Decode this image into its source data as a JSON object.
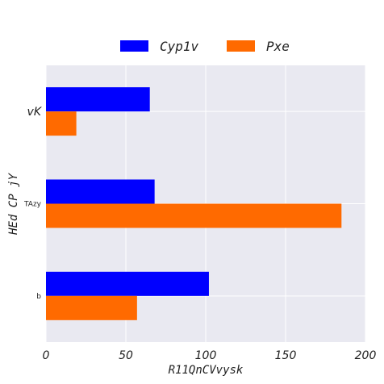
{
  "chart_data": {
    "type": "bar",
    "orientation": "horizontal",
    "categories": [
      "vK",
      "TAzy",
      "b"
    ],
    "series": [
      {
        "name": "Cyp1v",
        "values": [
          65,
          68,
          102
        ]
      },
      {
        "name": "Pxe",
        "values": [
          19,
          185,
          57
        ]
      }
    ],
    "xlabel": "R11QnCVvysk",
    "ylabel": "HEd CP  jY",
    "xlim": [
      0,
      200
    ],
    "xticks": [
      "0",
      "50",
      "100",
      "150",
      "200"
    ],
    "grid": true,
    "legend": "top-center",
    "colors": {
      "series": [
        "#0000ff",
        "#ff6a00"
      ],
      "plot_background": "#e9e9f1",
      "grid": "#ffffff"
    }
  }
}
